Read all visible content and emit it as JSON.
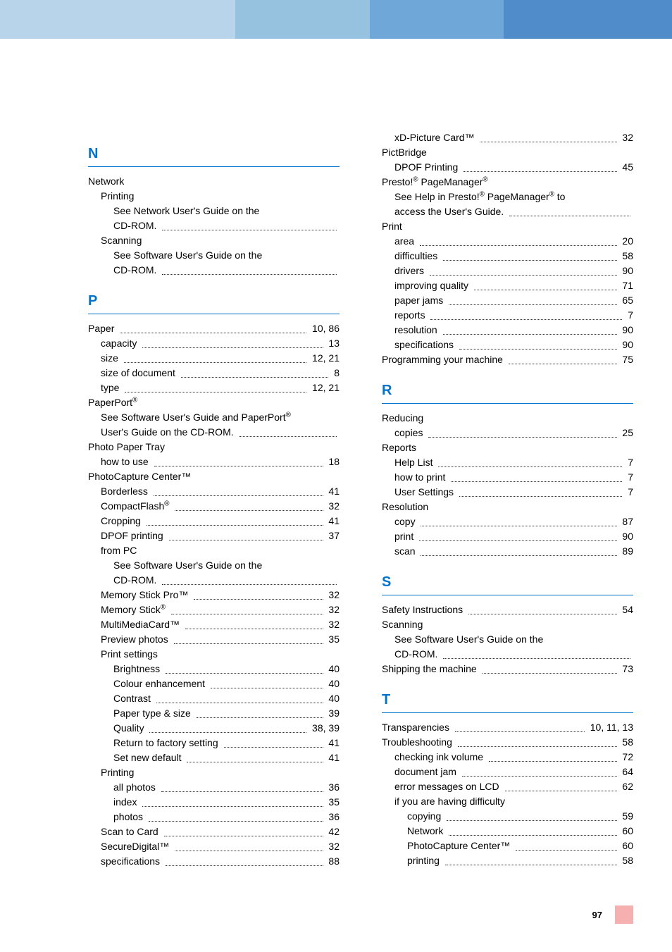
{
  "colors": {
    "letter": "#0073cf",
    "rule": "#0073cf",
    "square": "#f7b0b0"
  },
  "fonts": {
    "body_size": 14,
    "letter_size": 20
  },
  "pageNumber": "97",
  "left": [
    {
      "type": "letter",
      "text": "N"
    },
    {
      "type": "head",
      "text": "Network"
    },
    {
      "type": "head",
      "text": "Printing",
      "indent": 1
    },
    {
      "type": "text",
      "text": "See Network User's Guide on the",
      "indent": 2
    },
    {
      "type": "dotsonly",
      "text": "CD-ROM.",
      "indent": 2
    },
    {
      "type": "head",
      "text": "Scanning",
      "indent": 1
    },
    {
      "type": "text",
      "text": "See Software User's Guide on the",
      "indent": 2
    },
    {
      "type": "dotsonly",
      "text": "CD-ROM.",
      "indent": 2
    },
    {
      "type": "letter",
      "text": "P"
    },
    {
      "type": "entry",
      "text": "Paper",
      "page": "10, 86"
    },
    {
      "type": "entry",
      "text": "capacity",
      "page": "13",
      "indent": 1
    },
    {
      "type": "entry",
      "text": "size",
      "page": "12, 21",
      "indent": 1
    },
    {
      "type": "entry",
      "text": "size of document",
      "page": "8",
      "indent": 1
    },
    {
      "type": "entry",
      "text": "type",
      "page": "12, 21",
      "indent": 1
    },
    {
      "type": "head",
      "text": "PaperPort<sup>®</sup>"
    },
    {
      "type": "text",
      "text": "See Software User's Guide and PaperPort<sup>®</sup>",
      "indent": 1
    },
    {
      "type": "dotsonly",
      "text": "User's Guide on the CD-ROM.",
      "indent": 1
    },
    {
      "type": "head",
      "text": "Photo Paper Tray"
    },
    {
      "type": "entry",
      "text": "how to use",
      "page": "18",
      "indent": 1
    },
    {
      "type": "head",
      "text": "PhotoCapture Center™"
    },
    {
      "type": "entry",
      "text": "Borderless",
      "page": "41",
      "indent": 1
    },
    {
      "type": "entry",
      "text": "CompactFlash<sup>®</sup>",
      "page": "32",
      "indent": 1
    },
    {
      "type": "entry",
      "text": "Cropping",
      "page": "41",
      "indent": 1
    },
    {
      "type": "entry",
      "text": "DPOF printing",
      "page": "37",
      "indent": 1
    },
    {
      "type": "head",
      "text": "from PC",
      "indent": 1
    },
    {
      "type": "text",
      "text": "See Software User's Guide on the",
      "indent": 2
    },
    {
      "type": "dotsonly",
      "text": "CD-ROM.",
      "indent": 2
    },
    {
      "type": "entry",
      "text": "Memory Stick Pro™",
      "page": "32",
      "indent": 1
    },
    {
      "type": "entry",
      "text": "Memory Stick<sup>®</sup>",
      "page": "32",
      "indent": 1
    },
    {
      "type": "entry",
      "text": "MultiMediaCard™",
      "page": "32",
      "indent": 1
    },
    {
      "type": "entry",
      "text": "Preview photos",
      "page": "35",
      "indent": 1
    },
    {
      "type": "head",
      "text": "Print settings",
      "indent": 1
    },
    {
      "type": "entry",
      "text": "Brightness",
      "page": "40",
      "indent": 2
    },
    {
      "type": "entry",
      "text": "Colour enhancement",
      "page": "40",
      "indent": 2
    },
    {
      "type": "entry",
      "text": "Contrast",
      "page": "40",
      "indent": 2
    },
    {
      "type": "entry",
      "text": "Paper type & size",
      "page": "39",
      "indent": 2
    },
    {
      "type": "entry",
      "text": "Quality",
      "page": "38, 39",
      "indent": 2
    },
    {
      "type": "entry",
      "text": "Return to factory setting",
      "page": "41",
      "indent": 2
    },
    {
      "type": "entry",
      "text": "Set new default",
      "page": "41",
      "indent": 2
    },
    {
      "type": "head",
      "text": "Printing",
      "indent": 1
    },
    {
      "type": "entry",
      "text": "all photos",
      "page": "36",
      "indent": 2
    },
    {
      "type": "entry",
      "text": "index",
      "page": "35",
      "indent": 2
    },
    {
      "type": "entry",
      "text": "photos",
      "page": "36",
      "indent": 2
    },
    {
      "type": "entry",
      "text": "Scan to Card",
      "page": "42",
      "indent": 1
    },
    {
      "type": "entry",
      "text": "SecureDigital™",
      "page": "32",
      "indent": 1
    },
    {
      "type": "entry",
      "text": "specifications",
      "page": "88",
      "indent": 1
    }
  ],
  "right": [
    {
      "type": "entry",
      "text": "xD-Picture Card™",
      "page": "32",
      "indent": 1
    },
    {
      "type": "head",
      "text": "PictBridge"
    },
    {
      "type": "entry",
      "text": "DPOF Printing",
      "page": "45",
      "indent": 1
    },
    {
      "type": "head",
      "text": "Presto!<sup>®</sup> PageManager<sup>®</sup>"
    },
    {
      "type": "text",
      "text": "See Help in Presto!<sup>®</sup> PageManager<sup>®</sup> to",
      "indent": 1
    },
    {
      "type": "dotsonly",
      "text": "access the User's Guide.",
      "indent": 1
    },
    {
      "type": "head",
      "text": "Print"
    },
    {
      "type": "entry",
      "text": "area",
      "page": "20",
      "indent": 1
    },
    {
      "type": "entry",
      "text": "difficulties",
      "page": "58",
      "indent": 1
    },
    {
      "type": "entry",
      "text": "drivers",
      "page": "90",
      "indent": 1
    },
    {
      "type": "entry",
      "text": "improving quality",
      "page": "71",
      "indent": 1
    },
    {
      "type": "entry",
      "text": "paper jams",
      "page": "65",
      "indent": 1
    },
    {
      "type": "entry",
      "text": "reports",
      "page": "7",
      "indent": 1
    },
    {
      "type": "entry",
      "text": "resolution",
      "page": "90",
      "indent": 1
    },
    {
      "type": "entry",
      "text": "specifications",
      "page": "90",
      "indent": 1
    },
    {
      "type": "entry",
      "text": "Programming your machine",
      "page": "75"
    },
    {
      "type": "letter",
      "text": "R"
    },
    {
      "type": "head",
      "text": "Reducing"
    },
    {
      "type": "entry",
      "text": "copies",
      "page": "25",
      "indent": 1
    },
    {
      "type": "head",
      "text": "Reports"
    },
    {
      "type": "entry",
      "text": "Help List",
      "page": "7",
      "indent": 1
    },
    {
      "type": "entry",
      "text": "how to print",
      "page": "7",
      "indent": 1
    },
    {
      "type": "entry",
      "text": "User Settings",
      "page": "7",
      "indent": 1
    },
    {
      "type": "head",
      "text": "Resolution"
    },
    {
      "type": "entry",
      "text": "copy",
      "page": "87",
      "indent": 1
    },
    {
      "type": "entry",
      "text": "print",
      "page": "90",
      "indent": 1
    },
    {
      "type": "entry",
      "text": "scan",
      "page": "89",
      "indent": 1
    },
    {
      "type": "letter",
      "text": "S"
    },
    {
      "type": "entry",
      "text": "Safety Instructions",
      "page": "54"
    },
    {
      "type": "head",
      "text": "Scanning"
    },
    {
      "type": "text",
      "text": "See Software User's Guide on the",
      "indent": 1
    },
    {
      "type": "dotsonly",
      "text": "CD-ROM.",
      "indent": 1
    },
    {
      "type": "entry",
      "text": "Shipping the machine",
      "page": "73"
    },
    {
      "type": "letter",
      "text": "T"
    },
    {
      "type": "entry",
      "text": "Transparencies",
      "page": "10, 11, 13"
    },
    {
      "type": "entry",
      "text": "Troubleshooting",
      "page": "58"
    },
    {
      "type": "entry",
      "text": "checking ink volume",
      "page": "72",
      "indent": 1
    },
    {
      "type": "entry",
      "text": "document jam",
      "page": "64",
      "indent": 1
    },
    {
      "type": "entry",
      "text": "error messages on LCD",
      "page": "62",
      "indent": 1
    },
    {
      "type": "head",
      "text": "if you are having difficulty",
      "indent": 1
    },
    {
      "type": "entry",
      "text": "copying",
      "page": "59",
      "indent": 2
    },
    {
      "type": "entry",
      "text": "Network",
      "page": "60",
      "indent": 2
    },
    {
      "type": "entry",
      "text": "PhotoCapture Center™",
      "page": "60",
      "indent": 2
    },
    {
      "type": "entry",
      "text": "printing",
      "page": "58",
      "indent": 2
    }
  ]
}
